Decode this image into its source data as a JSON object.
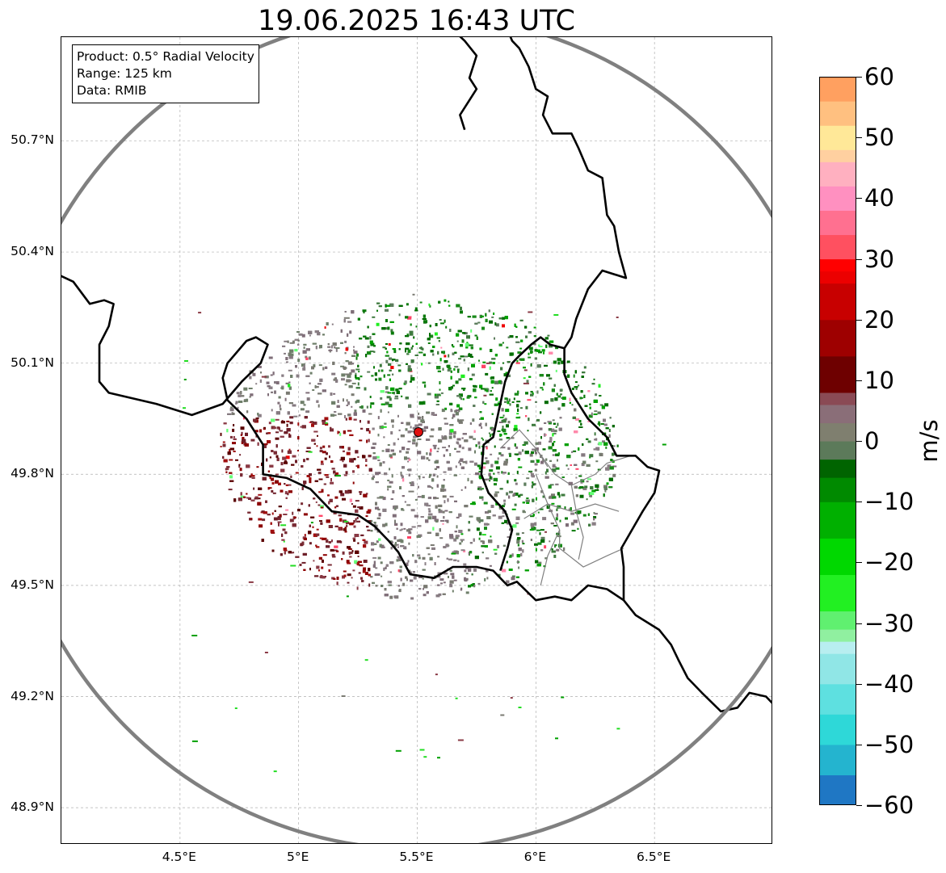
{
  "title": "19.06.2025 16:43 UTC",
  "info": {
    "product": "Product: 0.5° Radial Velocity",
    "range": "Range: 125 km",
    "data": "Data: RMIB"
  },
  "map": {
    "lon_range": [
      4.0,
      7.0
    ],
    "lat_range": [
      48.8,
      50.98
    ],
    "radar_site": {
      "lon": 5.505,
      "lat": 49.914
    },
    "range_ring_km": 125,
    "gridlines": true,
    "lat_ticks": [
      {
        "value": 50.7,
        "label": "50.7°N"
      },
      {
        "value": 50.4,
        "label": "50.4°N"
      },
      {
        "value": 50.1,
        "label": "50.1°N"
      },
      {
        "value": 49.8,
        "label": "49.8°N"
      },
      {
        "value": 49.5,
        "label": "49.5°N"
      },
      {
        "value": 49.2,
        "label": "49.2°N"
      },
      {
        "value": 48.9,
        "label": "48.9°N"
      }
    ],
    "lon_ticks": [
      {
        "value": 4.5,
        "label": "4.5°E"
      },
      {
        "value": 5.0,
        "label": "5°E"
      },
      {
        "value": 5.5,
        "label": "5.5°E"
      },
      {
        "value": 6.0,
        "label": "6°E"
      },
      {
        "value": 6.5,
        "label": "6.5°E"
      }
    ],
    "border_color": "#000000",
    "ring_color": "#808080",
    "admin_color": "#808080",
    "site_color": "#e01010"
  },
  "colorbar": {
    "label": "m/s",
    "min": -60,
    "max": 60,
    "ticks": [
      {
        "value": 60,
        "label": "60"
      },
      {
        "value": 50,
        "label": "50"
      },
      {
        "value": 40,
        "label": "40"
      },
      {
        "value": 30,
        "label": "30"
      },
      {
        "value": 20,
        "label": "20"
      },
      {
        "value": 10,
        "label": "10"
      },
      {
        "value": 0,
        "label": "0"
      },
      {
        "value": -10,
        "label": "−10"
      },
      {
        "value": -20,
        "label": "−20"
      },
      {
        "value": -30,
        "label": "−30"
      },
      {
        "value": -40,
        "label": "−40"
      },
      {
        "value": -50,
        "label": "−50"
      },
      {
        "value": -60,
        "label": "−60"
      }
    ],
    "stops": [
      {
        "v": -60,
        "color": "#1f77c4"
      },
      {
        "v": -55,
        "color": "#24b4cf"
      },
      {
        "v": -50,
        "color": "#2ed8d8"
      },
      {
        "v": -45,
        "color": "#5ee0e0"
      },
      {
        "v": -40,
        "color": "#90e6e6"
      },
      {
        "v": -35,
        "color": "#b8eef0"
      },
      {
        "v": -33,
        "color": "#90f0a0"
      },
      {
        "v": -31,
        "color": "#60f070"
      },
      {
        "v": -28,
        "color": "#22f022"
      },
      {
        "v": -22,
        "color": "#00d800"
      },
      {
        "v": -16,
        "color": "#00b000"
      },
      {
        "v": -10,
        "color": "#008a00"
      },
      {
        "v": -6,
        "color": "#006400"
      },
      {
        "v": -3,
        "color": "#5c7a5a"
      },
      {
        "v": 0,
        "color": "#7f7f6f"
      },
      {
        "v": 3,
        "color": "#8a6e78"
      },
      {
        "v": 6,
        "color": "#8a4a55"
      },
      {
        "v": 8,
        "color": "#6e0000"
      },
      {
        "v": 14,
        "color": "#9e0000"
      },
      {
        "v": 20,
        "color": "#c80000"
      },
      {
        "v": 26,
        "color": "#ec0000"
      },
      {
        "v": 28,
        "color": "#ff0000"
      },
      {
        "v": 30,
        "color": "#ff5060"
      },
      {
        "v": 34,
        "color": "#ff7090"
      },
      {
        "v": 38,
        "color": "#ff90c0"
      },
      {
        "v": 42,
        "color": "#ffb0c0"
      },
      {
        "v": 46,
        "color": "#ffd0a0"
      },
      {
        "v": 48,
        "color": "#ffe898"
      },
      {
        "v": 52,
        "color": "#ffc080"
      },
      {
        "v": 56,
        "color": "#ffa060"
      },
      {
        "v": 60,
        "color": "#ff9050"
      }
    ]
  }
}
